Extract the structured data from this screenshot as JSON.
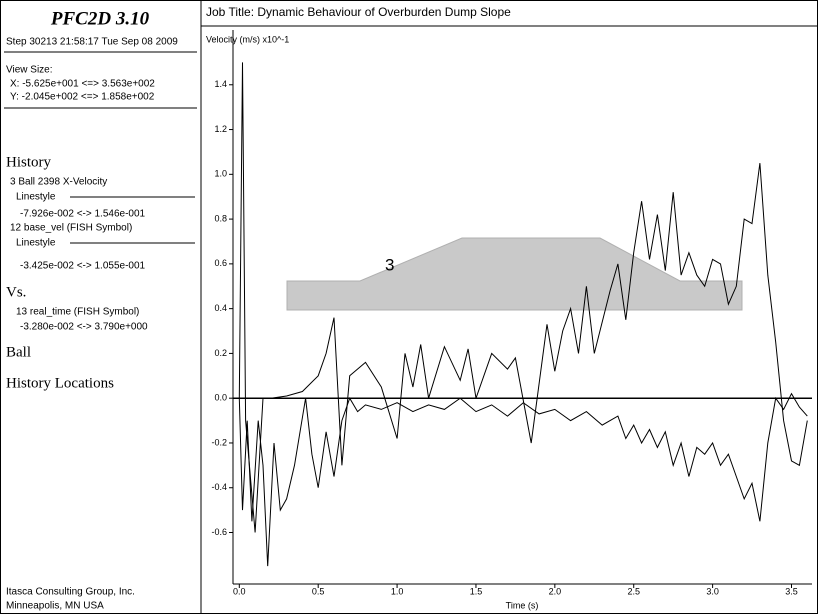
{
  "panel": {
    "app": "PFC2D 3.10",
    "step": "Step 30213  21:58:17 Tue Sep 08 2009",
    "view_size": "View Size:",
    "view_x": "X: -5.625e+001 <=> 3.563e+002",
    "view_y": "Y: -2.045e+002 <=> 1.858e+002",
    "history": "History",
    "linestyle_1": "Linestyle",
    "range_1": "-7.926e-002 <->  1.546e-001",
    "linestyle_2": "Linestyle",
    "range_2": "-3.425e-002 <->  1.055e-001",
    "vs": "Vs.",
    "x_var": "13 real_time (FISH Symbol)",
    "x_range": "-3.280e-002 <-> 3.790e+000",
    "ball": "Ball",
    "locations": "History Locations",
    "company": "Itasca Consulting Group, Inc.",
    "city": "Minneapolis, MN  USA"
  },
  "chart_data": {
    "type": "line",
    "title": "Job Title: Dynamic Behaviour of Overburden Dump Slope",
    "y_label": "Velocity (m/s) x10^-1",
    "x_label": "Time (s)",
    "annotation": "3",
    "xlim": [
      -0.04,
      3.63
    ],
    "ylim": [
      -0.83,
      1.6
    ],
    "xticks": [
      {
        "value": 0,
        "label": "0.0"
      },
      0.5,
      {
        "value": 1,
        "label": "1.0"
      },
      1.5,
      {
        "value": 2,
        "label": "2.0"
      },
      2.5,
      {
        "value": 3,
        "label": "3.0"
      },
      3.5
    ],
    "yticks": [
      -0.6,
      -0.4,
      -0.2,
      {
        "value": 0,
        "label": "0.0"
      },
      0.2,
      0.4,
      0.6,
      0.8,
      {
        "value": 1,
        "label": "1.0"
      },
      1.2,
      1.4
    ],
    "series": [
      {
        "name": "3 Ball 2398 X-Velocity",
        "color": "#000000",
        "x": [
          0,
          0.02,
          0.05,
          0.08,
          0.12,
          0.15,
          0.18,
          0.22,
          0.26,
          0.3,
          0.35,
          0.42,
          0.46,
          0.5,
          0.55,
          0.6,
          0.65,
          0.7,
          0.75,
          0.8,
          0.9,
          1.0,
          1.1,
          1.2,
          1.3,
          1.4,
          1.5,
          1.6,
          1.7,
          1.8,
          1.9,
          2.0,
          2.1,
          2.2,
          2.3,
          2.4,
          2.45,
          2.5,
          2.55,
          2.6,
          2.65,
          2.7,
          2.75,
          2.8,
          2.85,
          2.9,
          2.95,
          3.0,
          3.05,
          3.1,
          3.15,
          3.2,
          3.25,
          3.3,
          3.35,
          3.4,
          3.45,
          3.5,
          3.55,
          3.6
        ],
        "values": [
          0,
          -0.5,
          -0.1,
          -0.55,
          -0.1,
          -0.3,
          -0.75,
          -0.2,
          -0.5,
          -0.45,
          -0.3,
          0.0,
          -0.25,
          -0.4,
          -0.15,
          -0.35,
          -0.1,
          0.0,
          -0.06,
          -0.03,
          -0.05,
          -0.02,
          -0.06,
          -0.03,
          -0.05,
          0.0,
          -0.06,
          -0.03,
          -0.08,
          -0.02,
          -0.07,
          -0.05,
          -0.1,
          -0.06,
          -0.12,
          -0.08,
          -0.18,
          -0.12,
          -0.2,
          -0.14,
          -0.22,
          -0.15,
          -0.3,
          -0.2,
          -0.35,
          -0.22,
          -0.25,
          -0.2,
          -0.3,
          -0.25,
          -0.35,
          -0.45,
          -0.38,
          -0.55,
          -0.2,
          0.0,
          -0.05,
          0.02,
          -0.04,
          -0.08
        ]
      },
      {
        "name": "12 base_vel (FISH Symbol)",
        "color": "#000000",
        "x": [
          0,
          0.02,
          0.04,
          0.1,
          0.15,
          0.2,
          0.3,
          0.4,
          0.5,
          0.55,
          0.6,
          0.65,
          0.7,
          0.8,
          0.9,
          1.0,
          1.05,
          1.1,
          1.15,
          1.2,
          1.3,
          1.4,
          1.45,
          1.5,
          1.6,
          1.7,
          1.75,
          1.85,
          1.95,
          2.0,
          2.05,
          2.1,
          2.15,
          2.2,
          2.25,
          2.35,
          2.4,
          2.45,
          2.5,
          2.55,
          2.6,
          2.65,
          2.7,
          2.75,
          2.8,
          2.85,
          2.9,
          2.95,
          3.0,
          3.05,
          3.1,
          3.15,
          3.2,
          3.25,
          3.3,
          3.35,
          3.4,
          3.45,
          3.5,
          3.55,
          3.6
        ],
        "values": [
          0,
          1.5,
          -0.1,
          -0.6,
          0.0,
          0.0,
          0.01,
          0.03,
          0.1,
          0.2,
          0.36,
          -0.3,
          0.1,
          0.16,
          0.05,
          -0.18,
          0.2,
          0.05,
          0.24,
          0.0,
          0.23,
          0.08,
          0.22,
          0.0,
          0.2,
          0.13,
          0.18,
          -0.2,
          0.33,
          0.12,
          0.3,
          0.4,
          0.2,
          0.5,
          0.2,
          0.48,
          0.6,
          0.35,
          0.65,
          0.88,
          0.62,
          0.82,
          0.57,
          0.92,
          0.55,
          0.65,
          0.55,
          0.5,
          0.62,
          0.6,
          0.42,
          0.5,
          0.8,
          0.78,
          1.05,
          0.55,
          0.25,
          -0.1,
          -0.28,
          -0.3,
          -0.1
        ]
      }
    ]
  }
}
